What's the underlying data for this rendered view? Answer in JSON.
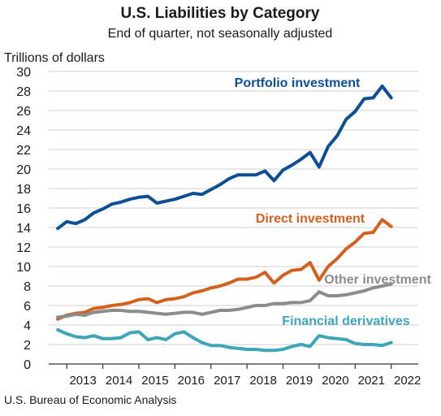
{
  "chart_data": {
    "type": "line",
    "title": "U.S. Liabilities by Category",
    "subtitle": "End of quarter, not seasonally adjusted",
    "ylabel": "Trillions of dollars",
    "source": "U.S. Bureau of Economic Analysis",
    "ylim": [
      0,
      30
    ],
    "yticks": [
      0,
      2,
      4,
      6,
      8,
      10,
      12,
      14,
      16,
      18,
      20,
      22,
      24,
      26,
      28,
      30
    ],
    "xlim": [
      2012.5,
      2022.75
    ],
    "xticks": [
      "2013",
      "2014",
      "2015",
      "2016",
      "2017",
      "2018",
      "2019",
      "2020",
      "2021",
      "2022"
    ],
    "grid": true,
    "legend": "inline labels",
    "x": [
      "2012 Q3",
      "2012 Q4",
      "2013 Q1",
      "2013 Q2",
      "2013 Q3",
      "2013 Q4",
      "2014 Q1",
      "2014 Q2",
      "2014 Q3",
      "2014 Q4",
      "2015 Q1",
      "2015 Q2",
      "2015 Q3",
      "2015 Q4",
      "2016 Q1",
      "2016 Q2",
      "2016 Q3",
      "2016 Q4",
      "2017 Q1",
      "2017 Q2",
      "2017 Q3",
      "2017 Q4",
      "2018 Q1",
      "2018 Q2",
      "2018 Q3",
      "2018 Q4",
      "2019 Q1",
      "2019 Q2",
      "2019 Q3",
      "2019 Q4",
      "2020 Q1",
      "2020 Q2",
      "2020 Q3",
      "2020 Q4",
      "2021 Q1",
      "2021 Q2",
      "2021 Q3",
      "2021 Q4",
      "2022 Q1"
    ],
    "series": [
      {
        "name": "Portfolio investment",
        "color": "#0d4f95",
        "values": [
          13.9,
          14.6,
          14.4,
          14.8,
          15.5,
          15.9,
          16.4,
          16.6,
          16.9,
          17.1,
          17.2,
          16.5,
          16.7,
          16.9,
          17.2,
          17.5,
          17.4,
          17.9,
          18.4,
          19.0,
          19.4,
          19.4,
          19.4,
          19.8,
          18.8,
          19.9,
          20.4,
          21.0,
          21.7,
          20.2,
          22.3,
          23.4,
          25.1,
          25.9,
          27.2,
          27.3,
          28.5,
          27.3,
          null
        ]
      },
      {
        "name": "Direct investment",
        "color": "#d2611f",
        "values": [
          4.6,
          5.0,
          5.2,
          5.3,
          5.7,
          5.8,
          6.0,
          6.1,
          6.3,
          6.6,
          6.7,
          6.3,
          6.6,
          6.7,
          6.9,
          7.3,
          7.5,
          7.8,
          8.0,
          8.3,
          8.7,
          8.7,
          8.9,
          9.4,
          8.3,
          9.1,
          9.6,
          9.7,
          10.4,
          8.6,
          10.0,
          10.8,
          11.8,
          12.5,
          13.4,
          13.5,
          14.8,
          14.1,
          null
        ]
      },
      {
        "name": "Other investment",
        "color": "#8c8c8c",
        "values": [
          4.8,
          4.9,
          5.1,
          5.0,
          5.3,
          5.4,
          5.5,
          5.5,
          5.4,
          5.4,
          5.3,
          5.2,
          5.1,
          5.2,
          5.3,
          5.3,
          5.1,
          5.3,
          5.5,
          5.5,
          5.6,
          5.8,
          6.0,
          6.0,
          6.2,
          6.2,
          6.3,
          6.3,
          6.5,
          7.4,
          7.0,
          7.0,
          7.1,
          7.3,
          7.5,
          7.8,
          8.0,
          8.2,
          null
        ]
      },
      {
        "name": "Financial derivatives",
        "color": "#3fa5b8",
        "values": [
          3.5,
          3.1,
          2.8,
          2.7,
          2.9,
          2.6,
          2.6,
          2.7,
          3.2,
          3.3,
          2.5,
          2.7,
          2.5,
          3.1,
          3.3,
          2.7,
          2.2,
          1.9,
          1.9,
          1.7,
          1.6,
          1.5,
          1.5,
          1.4,
          1.4,
          1.5,
          1.8,
          2.0,
          1.8,
          2.9,
          2.7,
          2.6,
          2.5,
          2.1,
          2.0,
          2.0,
          1.9,
          2.2,
          null
        ]
      }
    ]
  }
}
